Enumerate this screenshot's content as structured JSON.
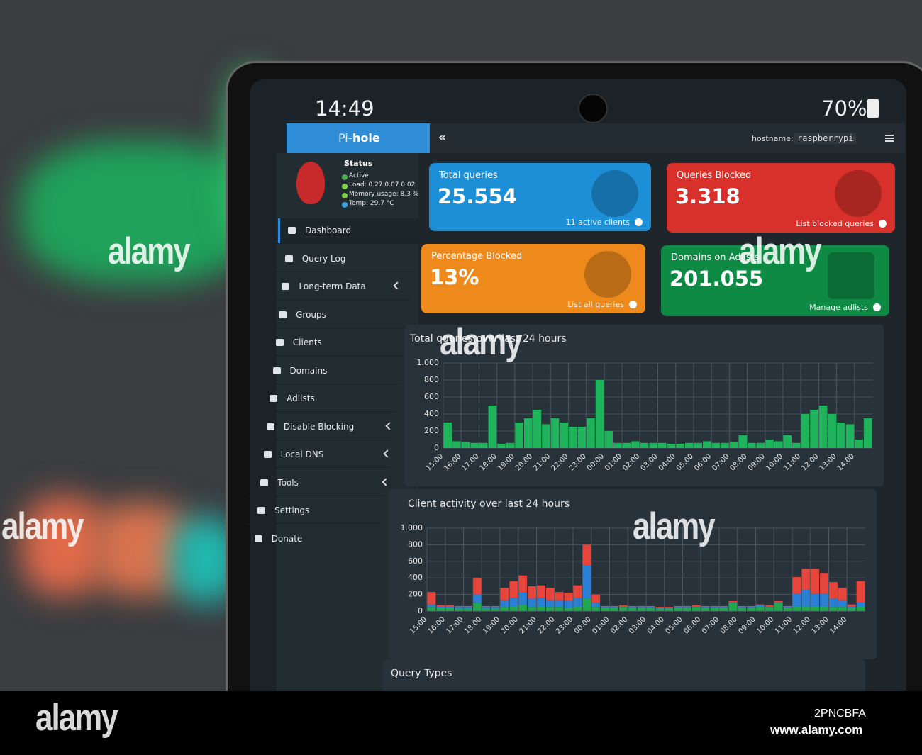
{
  "status_bar": {
    "time": "14:49",
    "battery": "70%"
  },
  "sidebar": {
    "logo": [
      "Pi-",
      "hole"
    ],
    "status": {
      "title": "Status",
      "lines": [
        "Active",
        "Load: 0.27 0.07 0.02",
        "Memory usage: 8.3 %",
        "Temp: 29.7 °C"
      ]
    },
    "menu": [
      {
        "label": "Dashboard",
        "submenu": false
      },
      {
        "label": "Query Log",
        "submenu": false
      },
      {
        "label": "Long-term Data",
        "submenu": true
      },
      {
        "label": "Groups",
        "submenu": false
      },
      {
        "label": "Clients",
        "submenu": false
      },
      {
        "label": "Domains",
        "submenu": false
      },
      {
        "label": "Adlists",
        "submenu": false
      },
      {
        "label": "Disable Blocking",
        "submenu": true
      },
      {
        "label": "Local DNS",
        "submenu": true
      },
      {
        "label": "Tools",
        "submenu": true
      },
      {
        "label": "Settings",
        "submenu": false
      },
      {
        "label": "Donate",
        "submenu": false
      }
    ]
  },
  "header": {
    "collapse": "«",
    "hostname_label": "hostname:",
    "hostname": "raspberrypi"
  },
  "cards": [
    {
      "title": "Total queries",
      "value": "25.554",
      "link": "11 active clients",
      "color": "#1d8fd6"
    },
    {
      "title": "Queries Blocked",
      "value": "3.318",
      "link": "List blocked queries",
      "color": "#d8312c"
    },
    {
      "title": "Percentage Blocked",
      "value": "13%",
      "link": "List all queries",
      "color": "#ee8a1b"
    },
    {
      "title": "Domains on Adlists",
      "value": "201.055",
      "link": "Manage adlists",
      "color": "#0f8a45"
    }
  ],
  "charts": [
    {
      "title": "Total queries over last 24 hours",
      "ylim": [
        0,
        1000
      ],
      "yticks": [
        0,
        200,
        400,
        600,
        800,
        {
          "value": 1000,
          "label": "1.000"
        }
      ],
      "x_labels": [
        "15:00",
        "16:00",
        "17:00",
        "18:00",
        "19:00",
        "20:00",
        "21:00",
        "22:00",
        "23:00",
        "00:00",
        "01:00",
        "02:00",
        "03:00",
        "04:00",
        "05:00",
        "06:00",
        "07:00",
        "08:00",
        "09:00",
        "10:00",
        "11:00",
        "12:00",
        "13:00",
        "14:00"
      ],
      "series": [
        {
          "color": "#1fb35b",
          "values": [
            300,
            80,
            70,
            60,
            60,
            500,
            50,
            60,
            300,
            350,
            450,
            280,
            350,
            300,
            250,
            250,
            350,
            800,
            200,
            60,
            60,
            80,
            60,
            60,
            60,
            50,
            50,
            60,
            60,
            80,
            60,
            60,
            70,
            150,
            60,
            60,
            100,
            80,
            150,
            60,
            400,
            450,
            500,
            400,
            300,
            280,
            100,
            350
          ]
        }
      ]
    },
    {
      "title": "Client activity over last 24 hours",
      "ylim": [
        0,
        1000
      ],
      "yticks": [
        0,
        200,
        400,
        600,
        800,
        {
          "value": 1000,
          "label": "1.000"
        }
      ],
      "x_labels": [
        "15:00",
        "16:00",
        "17:00",
        "18:00",
        "19:00",
        "20:00",
        "21:00",
        "22:00",
        "23:00",
        "00:00",
        "01:00",
        "02:00",
        "03:00",
        "04:00",
        "05:00",
        "06:00",
        "07:00",
        "08:00",
        "09:00",
        "10:00",
        "11:00",
        "12:00",
        "13:00",
        "14:00"
      ],
      "series": [
        {
          "color": "#21a84f",
          "values": [
            50,
            40,
            40,
            30,
            30,
            100,
            30,
            30,
            50,
            60,
            80,
            50,
            60,
            50,
            50,
            40,
            60,
            150,
            50,
            40,
            40,
            50,
            40,
            40,
            40,
            30,
            30,
            40,
            40,
            50,
            40,
            40,
            40,
            100,
            40,
            40,
            60,
            50,
            100,
            40,
            60,
            60,
            60,
            60,
            50,
            50,
            40,
            60
          ]
        },
        {
          "color": "#2a7fd4",
          "values": [
            30,
            20,
            20,
            20,
            20,
            100,
            20,
            20,
            80,
            100,
            150,
            100,
            100,
            80,
            80,
            80,
            100,
            400,
            50,
            10,
            10,
            10,
            10,
            10,
            10,
            10,
            10,
            10,
            10,
            10,
            10,
            10,
            10,
            10,
            10,
            10,
            10,
            10,
            10,
            10,
            150,
            200,
            150,
            150,
            100,
            80,
            20,
            50
          ]
        },
        {
          "color": "#e5453b",
          "values": [
            150,
            10,
            10,
            10,
            10,
            200,
            10,
            10,
            150,
            200,
            200,
            150,
            150,
            150,
            100,
            100,
            150,
            250,
            100,
            10,
            10,
            10,
            10,
            10,
            10,
            10,
            10,
            10,
            10,
            10,
            10,
            10,
            10,
            10,
            10,
            10,
            10,
            10,
            10,
            10,
            200,
            250,
            300,
            250,
            200,
            150,
            20,
            250
          ]
        }
      ]
    }
  ],
  "next_section": "Query Types",
  "watermarks": [
    "alamy",
    "alamy",
    "alamy",
    "alamy",
    "alamy"
  ],
  "stock": {
    "brand": "alamy",
    "id": "2PNCBFA",
    "url": "www.alamy.com"
  }
}
